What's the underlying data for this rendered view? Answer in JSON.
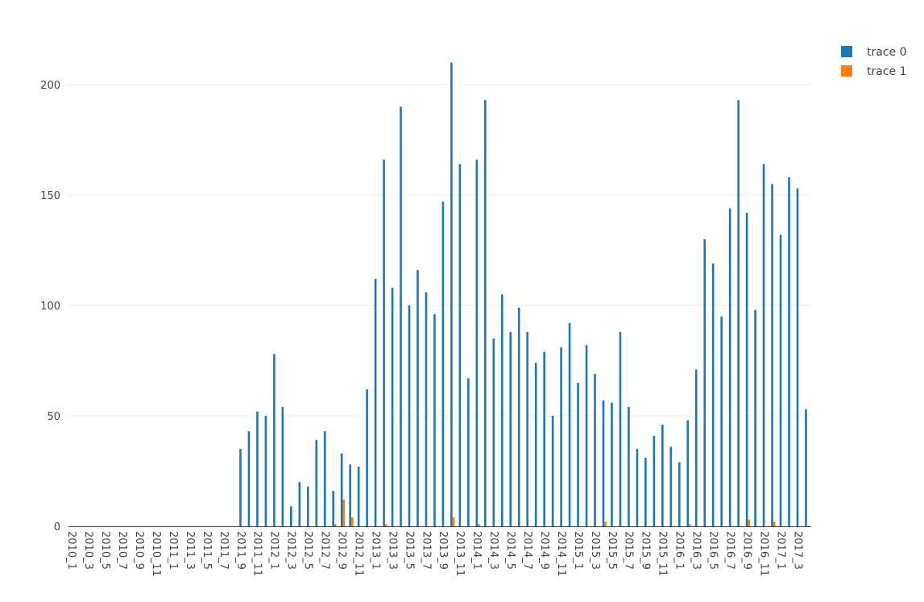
{
  "chart_data": {
    "type": "bar",
    "categories": [
      "2010_1",
      "2010_2",
      "2010_3",
      "2010_4",
      "2010_5",
      "2010_6",
      "2010_7",
      "2010_8",
      "2010_9",
      "2010_10",
      "2010_11",
      "2010_12",
      "2011_1",
      "2011_2",
      "2011_3",
      "2011_4",
      "2011_5",
      "2011_6",
      "2011_7",
      "2011_8",
      "2011_9",
      "2011_10",
      "2011_11",
      "2011_12",
      "2012_1",
      "2012_2",
      "2012_3",
      "2012_4",
      "2012_5",
      "2012_6",
      "2012_7",
      "2012_8",
      "2012_9",
      "2012_10",
      "2012_11",
      "2012_12",
      "2013_1",
      "2013_2",
      "2013_3",
      "2013_4",
      "2013_5",
      "2013_6",
      "2013_7",
      "2013_8",
      "2013_9",
      "2013_10",
      "2013_11",
      "2013_12",
      "2014_1",
      "2014_2",
      "2014_3",
      "2014_4",
      "2014_5",
      "2014_6",
      "2014_7",
      "2014_8",
      "2014_9",
      "2014_10",
      "2014_11",
      "2014_12",
      "2015_1",
      "2015_2",
      "2015_3",
      "2015_4",
      "2015_5",
      "2015_6",
      "2015_7",
      "2015_8",
      "2015_9",
      "2015_10",
      "2015_11",
      "2015_12",
      "2016_1",
      "2016_2",
      "2016_3",
      "2016_4",
      "2016_5",
      "2016_6",
      "2016_7",
      "2016_8",
      "2016_9",
      "2016_10",
      "2016_11",
      "2016_12",
      "2017_1",
      "2017_2",
      "2017_3",
      "2017_4"
    ],
    "tick_labels": [
      "2010_1",
      "2010_3",
      "2010_5",
      "2010_7",
      "2010_9",
      "2010_11",
      "2011_1",
      "2011_3",
      "2011_5",
      "2011_7",
      "2011_9",
      "2011_11",
      "2012_1",
      "2012_3",
      "2012_5",
      "2012_7",
      "2012_9",
      "2012_11",
      "2013_1",
      "2013_3",
      "2013_5",
      "2013_7",
      "2013_9",
      "2013_11",
      "2014_1",
      "2014_3",
      "2014_5",
      "2014_7",
      "2014_9",
      "2014_11",
      "2015_1",
      "2015_3",
      "2015_5",
      "2015_7",
      "2015_9",
      "2015_11",
      "2016_1",
      "2016_3",
      "2016_5",
      "2016_7",
      "2016_9",
      "2016_11",
      "2017_1",
      "2017_3"
    ],
    "series": [
      {
        "name": "trace 0",
        "color": "#1f77b4",
        "values": [
          0,
          0,
          0,
          0,
          0,
          0,
          0,
          0,
          0,
          0,
          0,
          0,
          0,
          0,
          0,
          0,
          0,
          0,
          0,
          0,
          35,
          43,
          52,
          50,
          78,
          54,
          9,
          20,
          18,
          39,
          43,
          16,
          33,
          28,
          27,
          62,
          112,
          166,
          108,
          190,
          100,
          116,
          106,
          96,
          147,
          210,
          164,
          67,
          166,
          193,
          85,
          105,
          88,
          99,
          88,
          74,
          79,
          50,
          81,
          92,
          65,
          82,
          69,
          57,
          56,
          88,
          54,
          35,
          31,
          41,
          46,
          36,
          29,
          48,
          71,
          130,
          119,
          95,
          144,
          193,
          142,
          98,
          164,
          155,
          132,
          158,
          153,
          53
        ]
      },
      {
        "name": "trace 1",
        "color": "#ff7f0e",
        "values": [
          0,
          0,
          0,
          0,
          0,
          0,
          0,
          0,
          0,
          0,
          0,
          0,
          0,
          0,
          0,
          0,
          0,
          0,
          0,
          0,
          0,
          0,
          0,
          0,
          0,
          0,
          0,
          0,
          0,
          0,
          0,
          1,
          12,
          4,
          0,
          0,
          0,
          1,
          0,
          0,
          0,
          0,
          0,
          0,
          0,
          4,
          0,
          0,
          1,
          0,
          0,
          0,
          0,
          0,
          0,
          0,
          0,
          0,
          0,
          0,
          0,
          0,
          0,
          2,
          0,
          0,
          0,
          0,
          0,
          0,
          0,
          0,
          0,
          1,
          0,
          0,
          0,
          0,
          0,
          0,
          3,
          0,
          0,
          2,
          0,
          0,
          0,
          0
        ]
      }
    ],
    "yticks": [
      0,
      50,
      100,
      150,
      200
    ],
    "ylim": [
      0,
      220
    ],
    "grid": true,
    "legend": "top-right",
    "title": "",
    "xlabel": "",
    "ylabel": ""
  }
}
